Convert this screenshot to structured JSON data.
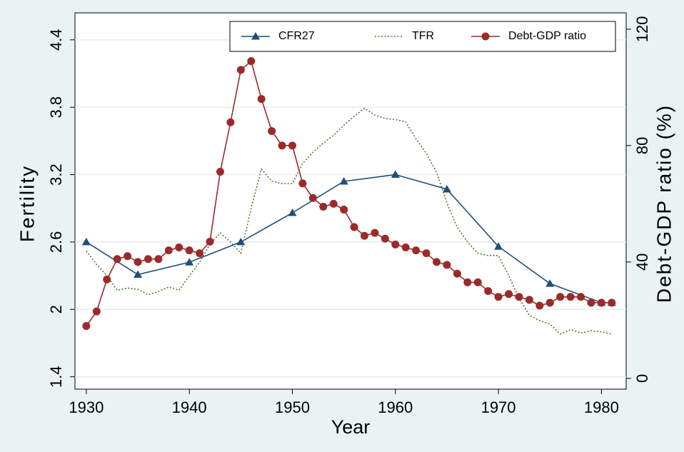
{
  "chart_data": {
    "type": "line",
    "xlabel": "Year",
    "ylabel": "Fertility",
    "y2label": "Debt-GDP ratio (%)",
    "xlim": [
      1928.9,
      1982.4
    ],
    "xticks": [
      1930,
      1940,
      1950,
      1960,
      1970,
      1980
    ],
    "ylim": [
      1.29,
      4.64
    ],
    "yticks": [
      1.4,
      2,
      2.6,
      3.2,
      3.8,
      4.4
    ],
    "y2lim": [
      -3.7,
      125.6
    ],
    "y2ticks": [
      0,
      40,
      80,
      120
    ],
    "grid": true,
    "legend": "top-right",
    "series": [
      {
        "name": "CFR27",
        "color": "#1f4e79",
        "marker": "triangle",
        "line_style": "solid",
        "x": [
          1930,
          1935,
          1940,
          1945,
          1950,
          1955,
          1960,
          1965,
          1970,
          1975,
          1980,
          1981
        ],
        "values": [
          2.6,
          2.31,
          2.42,
          2.6,
          2.86,
          3.14,
          3.2,
          3.07,
          2.56,
          2.23,
          2.06,
          2.06
        ]
      },
      {
        "name": "TFR",
        "color": "#4f7a28",
        "marker": "none",
        "line_style": "dotted",
        "x": [
          1930,
          1931,
          1932,
          1933,
          1934,
          1935,
          1936,
          1937,
          1938,
          1939,
          1940,
          1941,
          1942,
          1943,
          1944,
          1945,
          1946,
          1947,
          1948,
          1949,
          1950,
          1951,
          1952,
          1953,
          1954,
          1955,
          1956,
          1957,
          1958,
          1959,
          1960,
          1961,
          1962,
          1963,
          1964,
          1965,
          1966,
          1967,
          1968,
          1969,
          1970,
          1971,
          1972,
          1973,
          1974,
          1975,
          1976,
          1977,
          1978,
          1979,
          1980,
          1981
        ],
        "values": [
          2.52,
          2.4,
          2.3,
          2.17,
          2.19,
          2.18,
          2.13,
          2.16,
          2.2,
          2.17,
          2.3,
          2.42,
          2.58,
          2.68,
          2.6,
          2.5,
          2.9,
          3.25,
          3.14,
          3.12,
          3.12,
          3.3,
          3.4,
          3.48,
          3.55,
          3.64,
          3.72,
          3.79,
          3.73,
          3.7,
          3.69,
          3.67,
          3.52,
          3.39,
          3.22,
          2.95,
          2.73,
          2.6,
          2.5,
          2.48,
          2.48,
          2.3,
          2.1,
          1.95,
          1.9,
          1.87,
          1.78,
          1.82,
          1.79,
          1.81,
          1.8,
          1.78
        ]
      },
      {
        "name": "Debt-GDP ratio",
        "color": "#9b2a2a",
        "marker": "circle",
        "line_style": "solid",
        "axis": "y2",
        "x": [
          1930,
          1931,
          1932,
          1933,
          1934,
          1935,
          1936,
          1937,
          1938,
          1939,
          1940,
          1941,
          1942,
          1943,
          1944,
          1945,
          1946,
          1947,
          1948,
          1949,
          1950,
          1951,
          1952,
          1953,
          1954,
          1955,
          1956,
          1957,
          1958,
          1959,
          1960,
          1961,
          1962,
          1963,
          1964,
          1965,
          1966,
          1967,
          1968,
          1969,
          1970,
          1971,
          1972,
          1973,
          1974,
          1975,
          1976,
          1977,
          1978,
          1979,
          1980,
          1981
        ],
        "values": [
          18,
          23,
          34,
          41,
          42,
          40,
          41,
          41,
          44,
          45,
          44,
          43,
          47,
          71,
          88,
          106,
          109,
          96,
          85,
          80,
          80,
          67,
          62,
          59,
          60,
          58,
          52,
          49,
          50,
          48,
          46,
          45,
          44,
          43,
          40,
          39,
          36,
          33,
          33,
          30,
          28,
          29,
          28,
          27,
          25,
          26,
          28,
          28,
          28,
          26,
          26,
          26
        ]
      }
    ]
  }
}
